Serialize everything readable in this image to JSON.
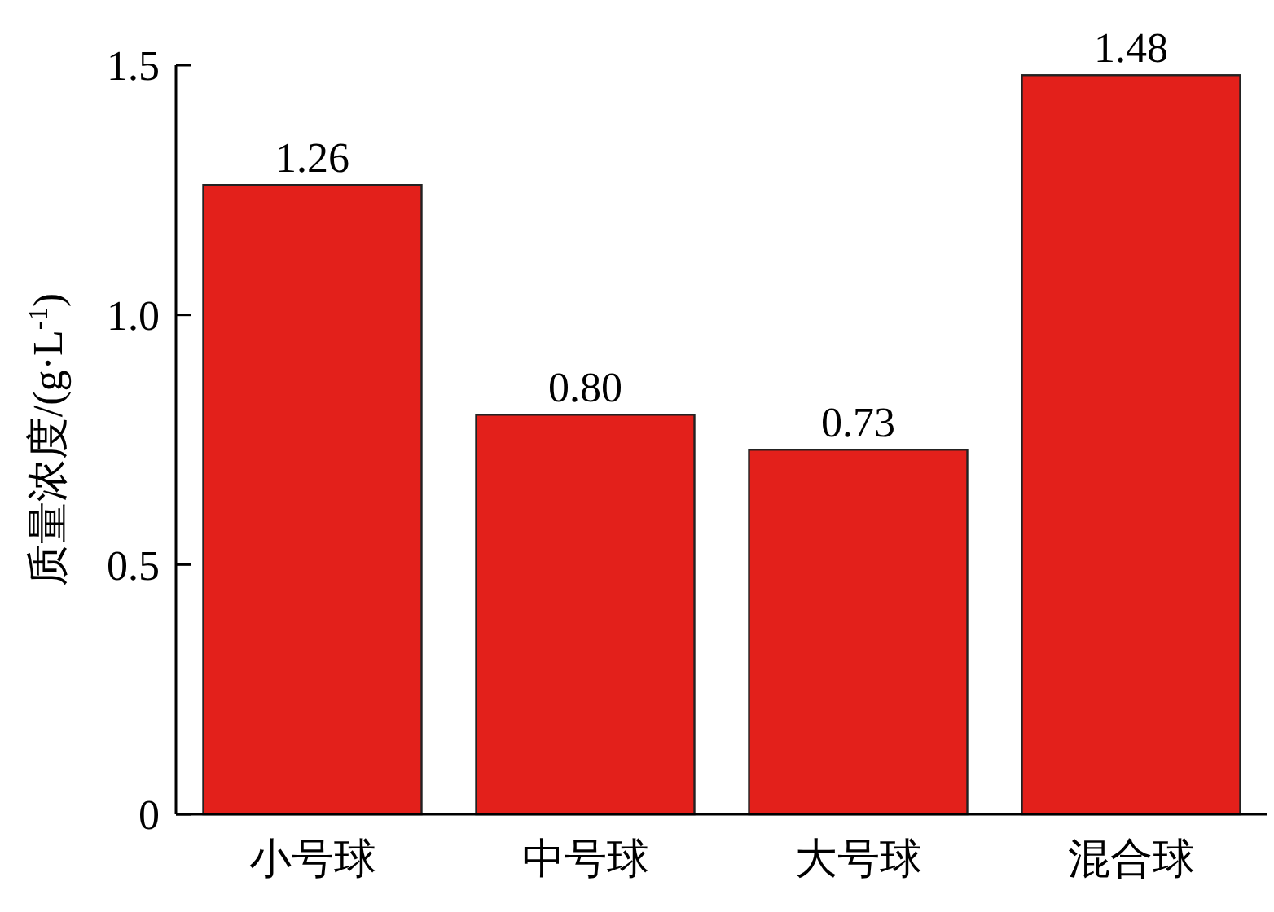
{
  "chart_data": {
    "type": "bar",
    "ylabel": "质量浓度/(g·L$^{-1}$)",
    "categories": [
      "小号球",
      "中号球",
      "大号球",
      "混合球"
    ],
    "values": [
      1.26,
      0.8,
      0.73,
      1.48
    ],
    "color": "#e3201b",
    "ylim": [
      0,
      1.5
    ],
    "yticks": [
      {
        "value": 0,
        "label": "0"
      },
      {
        "value": 0.5,
        "label": "0.5"
      },
      {
        "value": 1,
        "label": "1.0"
      },
      {
        "value": 1.5,
        "label": "1.5"
      }
    ],
    "value_labels": [
      "1.26",
      "0.80",
      "0.73",
      "1.48"
    ],
    "grid": false
  }
}
